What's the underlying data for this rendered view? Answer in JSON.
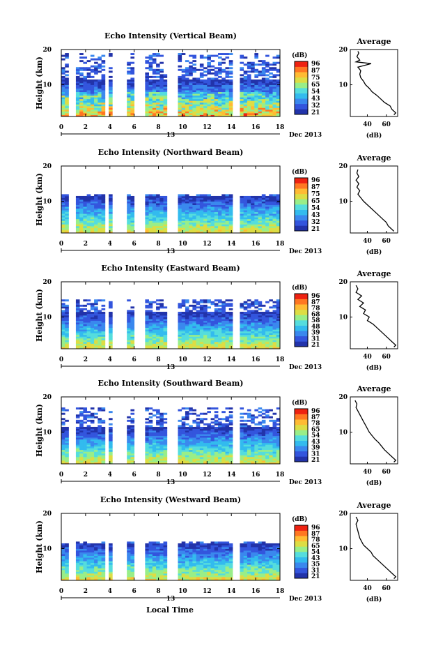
{
  "figure": {
    "xlabel": "Local Time",
    "date_label": "Dec 2013",
    "day_label": "13"
  },
  "colorbar": {
    "unit": "(dB)",
    "colors": [
      "#2233aa",
      "#3355dd",
      "#3a88ee",
      "#33bbee",
      "#55dddd",
      "#99ee88",
      "#dddd44",
      "#ffbb33",
      "#ff7722",
      "#ee2211"
    ]
  },
  "chart_data": [
    {
      "type": "heatmap",
      "title": "Echo Intensity (Vertical Beam)",
      "ylabel": "Height (km)",
      "xlim": [
        0,
        18
      ],
      "ylim": [
        1,
        20
      ],
      "xticks": [
        "0",
        "2",
        "4",
        "6",
        "8",
        "10",
        "12",
        "14",
        "16",
        "18"
      ],
      "yticks": [
        "10",
        "20"
      ],
      "colorbar_ticks": [
        "96",
        "87",
        "75",
        "65",
        "54",
        "43",
        "32",
        "21"
      ],
      "gaps": [
        [
          0.5,
          1.2
        ],
        [
          3.5,
          3.9
        ],
        [
          4.3,
          5.5
        ],
        [
          5.9,
          6.9
        ],
        [
          8.7,
          9.6
        ],
        [
          14.2,
          14.7
        ]
      ],
      "data_top_km": 19,
      "profile": {
        "title": "Average",
        "xlabel": "(dB)",
        "xticks": [
          "40",
          "60"
        ],
        "xlim": [
          22,
          72
        ],
        "ylim": [
          1,
          20
        ],
        "yticks": [
          "10",
          "20"
        ],
        "points": [
          [
            1.5,
            68
          ],
          [
            2,
            70
          ],
          [
            3,
            66
          ],
          [
            4,
            64
          ],
          [
            5,
            58
          ],
          [
            6,
            54
          ],
          [
            7,
            50
          ],
          [
            8,
            45
          ],
          [
            9,
            42
          ],
          [
            10,
            38
          ],
          [
            11,
            36
          ],
          [
            12,
            33
          ],
          [
            13,
            32
          ],
          [
            14,
            33
          ],
          [
            15,
            30
          ],
          [
            16,
            44
          ],
          [
            16.5,
            28
          ],
          [
            17,
            32
          ],
          [
            18,
            29
          ],
          [
            19,
            31
          ],
          [
            19.5,
            30
          ]
        ]
      }
    },
    {
      "type": "heatmap",
      "title": "Echo Intensity (Northward Beam)",
      "ylabel": "Height (km)",
      "xlim": [
        0,
        18
      ],
      "ylim": [
        1,
        20
      ],
      "xticks": [
        "0",
        "2",
        "4",
        "6",
        "8",
        "10",
        "12",
        "14",
        "16",
        "18"
      ],
      "yticks": [
        "10",
        "20"
      ],
      "colorbar_ticks": [
        "96",
        "87",
        "75",
        "65",
        "54",
        "43",
        "32",
        "21"
      ],
      "gaps": [
        [
          0.5,
          1.2
        ],
        [
          3.5,
          3.9
        ],
        [
          4.3,
          5.5
        ],
        [
          5.9,
          6.9
        ],
        [
          8.7,
          9.6
        ],
        [
          14.2,
          14.7
        ]
      ],
      "data_top_km": 12,
      "profile": {
        "title": "Average",
        "xlabel": "(dB)",
        "xticks": [
          "40",
          "60"
        ],
        "xlim": [
          22,
          72
        ],
        "ylim": [
          1,
          20
        ],
        "yticks": [
          "10",
          "20"
        ],
        "points": [
          [
            1.5,
            68
          ],
          [
            2,
            66
          ],
          [
            3,
            62
          ],
          [
            4,
            60
          ],
          [
            5,
            56
          ],
          [
            6,
            52
          ],
          [
            7,
            48
          ],
          [
            8,
            44
          ],
          [
            9,
            40
          ],
          [
            10,
            36
          ],
          [
            11,
            33
          ],
          [
            12,
            30
          ],
          [
            13,
            32
          ],
          [
            14,
            29
          ],
          [
            15,
            31
          ],
          [
            16,
            28
          ],
          [
            17,
            31
          ],
          [
            18,
            29
          ],
          [
            19,
            30
          ]
        ]
      }
    },
    {
      "type": "heatmap",
      "title": "Echo Intensity (Eastward Beam)",
      "ylabel": "Height (km)",
      "xlim": [
        0,
        18
      ],
      "ylim": [
        1,
        20
      ],
      "xticks": [
        "0",
        "2",
        "4",
        "6",
        "8",
        "10",
        "12",
        "14",
        "16",
        "18"
      ],
      "yticks": [
        "10",
        "20"
      ],
      "colorbar_ticks": [
        "96",
        "87",
        "78",
        "68",
        "58",
        "48",
        "39",
        "31",
        "21"
      ],
      "gaps": [
        [
          0.5,
          1.2
        ],
        [
          3.5,
          3.9
        ],
        [
          4.3,
          5.5
        ],
        [
          5.9,
          6.9
        ],
        [
          8.7,
          9.6
        ],
        [
          14.2,
          14.7
        ]
      ],
      "data_top_km": 15,
      "profile": {
        "title": "Average",
        "xlabel": "(dB)",
        "xticks": [
          "40",
          "60"
        ],
        "xlim": [
          22,
          72
        ],
        "ylim": [
          1,
          20
        ],
        "yticks": [
          "10",
          "20"
        ],
        "points": [
          [
            1.5,
            68
          ],
          [
            2,
            70
          ],
          [
            3,
            66
          ],
          [
            4,
            62
          ],
          [
            5,
            58
          ],
          [
            6,
            54
          ],
          [
            7,
            50
          ],
          [
            8,
            46
          ],
          [
            9,
            40
          ],
          [
            10,
            42
          ],
          [
            11,
            36
          ],
          [
            12,
            38
          ],
          [
            13,
            32
          ],
          [
            14,
            36
          ],
          [
            15,
            30
          ],
          [
            16,
            34
          ],
          [
            17,
            28
          ],
          [
            18,
            30
          ],
          [
            19,
            28
          ]
        ]
      }
    },
    {
      "type": "heatmap",
      "title": "Echo Intensity (Southward Beam)",
      "ylabel": "Height (km)",
      "xlim": [
        0,
        18
      ],
      "ylim": [
        1,
        20
      ],
      "xticks": [
        "0",
        "2",
        "4",
        "6",
        "8",
        "10",
        "12",
        "14",
        "16",
        "18"
      ],
      "yticks": [
        "10",
        "20"
      ],
      "colorbar_ticks": [
        "96",
        "87",
        "78",
        "65",
        "54",
        "43",
        "39",
        "31",
        "21"
      ],
      "gaps": [
        [
          0.5,
          1.2
        ],
        [
          3.5,
          3.9
        ],
        [
          4.3,
          5.5
        ],
        [
          5.9,
          6.9
        ],
        [
          8.7,
          9.6
        ],
        [
          14.2,
          14.7
        ]
      ],
      "data_top_km": 17,
      "profile": {
        "title": "Average",
        "xlabel": "(dB)",
        "xticks": [
          "40",
          "60"
        ],
        "xlim": [
          22,
          72
        ],
        "ylim": [
          1,
          20
        ],
        "yticks": [
          "10",
          "20"
        ],
        "points": [
          [
            1.5,
            68
          ],
          [
            2,
            70
          ],
          [
            3,
            66
          ],
          [
            4,
            62
          ],
          [
            5,
            58
          ],
          [
            6,
            55
          ],
          [
            7,
            52
          ],
          [
            8,
            48
          ],
          [
            9,
            45
          ],
          [
            10,
            42
          ],
          [
            11,
            40
          ],
          [
            12,
            38
          ],
          [
            13,
            36
          ],
          [
            14,
            34
          ],
          [
            15,
            32
          ],
          [
            16,
            30
          ],
          [
            17,
            28
          ],
          [
            18,
            29
          ],
          [
            19,
            27
          ]
        ]
      }
    },
    {
      "type": "heatmap",
      "title": "Echo Intensity (Westward Beam)",
      "ylabel": "Height (km)",
      "xlim": [
        0,
        18
      ],
      "ylim": [
        1,
        20
      ],
      "xticks": [
        "0",
        "2",
        "4",
        "6",
        "8",
        "10",
        "12",
        "14",
        "16",
        "18"
      ],
      "yticks": [
        "10",
        "20"
      ],
      "colorbar_ticks": [
        "96",
        "87",
        "78",
        "65",
        "54",
        "43",
        "35",
        "31",
        "21"
      ],
      "gaps": [
        [
          0.5,
          1.2
        ],
        [
          3.5,
          3.9
        ],
        [
          4.3,
          5.5
        ],
        [
          5.9,
          6.9
        ],
        [
          8.7,
          9.6
        ],
        [
          14.2,
          14.7
        ]
      ],
      "data_top_km": 12,
      "profile": {
        "title": "Average",
        "xlabel": "(dB)",
        "xticks": [
          "40",
          "60"
        ],
        "xlim": [
          22,
          72
        ],
        "ylim": [
          1,
          20
        ],
        "yticks": [
          "10",
          "20"
        ],
        "points": [
          [
            1.5,
            68
          ],
          [
            2,
            70
          ],
          [
            3,
            66
          ],
          [
            4,
            62
          ],
          [
            5,
            58
          ],
          [
            6,
            54
          ],
          [
            7,
            50
          ],
          [
            8,
            46
          ],
          [
            9,
            44
          ],
          [
            10,
            40
          ],
          [
            11,
            36
          ],
          [
            12,
            34
          ],
          [
            13,
            32
          ],
          [
            14,
            31
          ],
          [
            15,
            30
          ],
          [
            16,
            29
          ],
          [
            17,
            28
          ],
          [
            18,
            30
          ],
          [
            19,
            28
          ]
        ]
      }
    }
  ]
}
